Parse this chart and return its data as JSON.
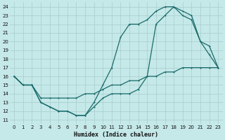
{
  "xlabel": "Humidex (Indice chaleur)",
  "xlim": [
    -0.5,
    23.5
  ],
  "ylim": [
    10.5,
    24.5
  ],
  "yticks": [
    11,
    12,
    13,
    14,
    15,
    16,
    17,
    18,
    19,
    20,
    21,
    22,
    23,
    24
  ],
  "xticks": [
    0,
    1,
    2,
    3,
    4,
    5,
    6,
    7,
    8,
    9,
    10,
    11,
    12,
    13,
    14,
    15,
    16,
    17,
    18,
    19,
    20,
    21,
    22,
    23
  ],
  "bg_color": "#c5e8e8",
  "grid_color": "#a8cccc",
  "line_color": "#1a6b6b",
  "line1_y": [
    16,
    15,
    15,
    13,
    12.5,
    12,
    12,
    11.5,
    11.5,
    13,
    15,
    17,
    20.5,
    22,
    22,
    22.5,
    23.5,
    24,
    24,
    23,
    22.5,
    20,
    18.5,
    17
  ],
  "line2_y": [
    16,
    15,
    15,
    13,
    12.5,
    12,
    12,
    11.5,
    11.5,
    12.5,
    13.5,
    14,
    14,
    14,
    14.5,
    16,
    22,
    23,
    24,
    23.5,
    23,
    20,
    19.5,
    17
  ],
  "line3_y": [
    16,
    15,
    15,
    13.5,
    13.5,
    13.5,
    13.5,
    13.5,
    14,
    14,
    14.5,
    15,
    15,
    15.5,
    15.5,
    16,
    16,
    16.5,
    16.5,
    17,
    17,
    17,
    17,
    17
  ]
}
